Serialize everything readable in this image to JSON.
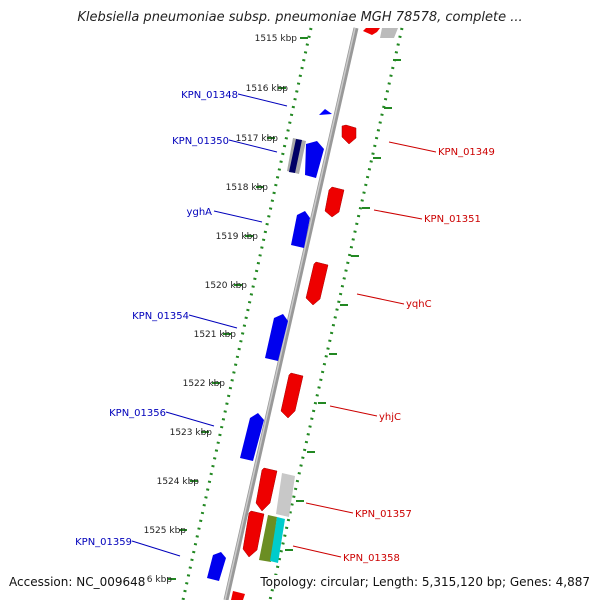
{
  "title": "Klebsiella pneumoniae subsp. pneumoniae MGH 78578, complete ...",
  "footer": {
    "accession": "Accession: NC_009648",
    "topology": "Topology: circular; Length: 5,315,120 bp; Genes: 4,887"
  },
  "ticks": [
    {
      "label": "1515 kbp"
    },
    {
      "label": "1516 kbp"
    },
    {
      "label": "1517 kbp"
    },
    {
      "label": "1518 kbp"
    },
    {
      "label": "1519 kbp"
    },
    {
      "label": "1520 kbp"
    },
    {
      "label": "1521 kbp"
    },
    {
      "label": "1522 kbp"
    },
    {
      "label": "1523 kbp"
    },
    {
      "label": "1524 kbp"
    },
    {
      "label": "1525 kbp"
    },
    {
      "label": "6 kbp"
    }
  ],
  "forward_labels": [
    "KPN_01348",
    "KPN_01350",
    "yghA",
    "KPN_01354",
    "KPN_01356",
    "KPN_01359"
  ],
  "reverse_labels": [
    "KPN_01349",
    "KPN_01351",
    "yqhC",
    "yhjC",
    "KPN_01357",
    "KPN_01358"
  ],
  "colors": {
    "forward_gene": "#0000ff",
    "reverse_gene": "#ff0000",
    "backbone": "#999999",
    "tick_dots": "#228822",
    "forward_label": "#0000bb",
    "reverse_label": "#cc0000",
    "tick_label": "#222222"
  }
}
